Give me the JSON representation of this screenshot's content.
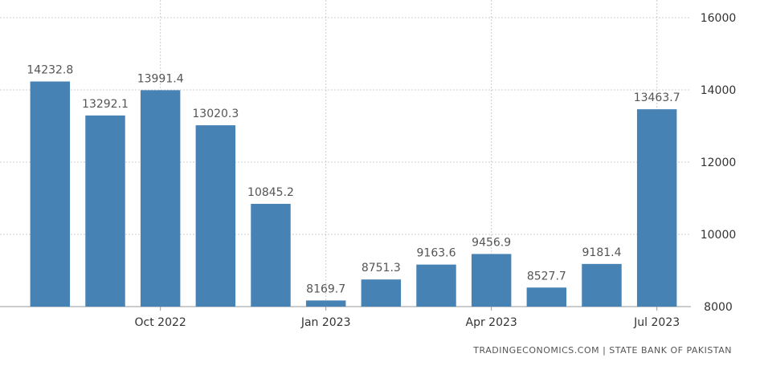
{
  "chart_data": {
    "type": "bar",
    "categories": [
      "Aug 2022",
      "Sep 2022",
      "Oct 2022",
      "Nov 2022",
      "Dec 2022",
      "Jan 2023",
      "Feb 2023",
      "Mar 2023",
      "Apr 2023",
      "May 2023",
      "Jun 2023",
      "Jul 2023"
    ],
    "values": [
      14232.8,
      13292.1,
      13991.4,
      13020.3,
      10845.2,
      8169.7,
      8751.3,
      9163.6,
      9456.9,
      8527.7,
      9181.4,
      13463.7
    ],
    "value_labels": [
      "14232.8",
      "13292.1",
      "13991.4",
      "13020.3",
      "10845.2",
      "8169.7",
      "8751.3",
      "9163.6",
      "9456.9",
      "8527.7",
      "9181.4",
      "13463.7"
    ],
    "x_tick_labels": [
      {
        "index": 2,
        "label": "Oct 2022"
      },
      {
        "index": 5,
        "label": "Jan 2023"
      },
      {
        "index": 8,
        "label": "Apr 2023"
      },
      {
        "index": 11,
        "label": "Jul 2023"
      }
    ],
    "y_ticks": [
      8000,
      10000,
      12000,
      14000,
      16000
    ],
    "ylim": [
      8000,
      16000
    ],
    "y_axis_side": "right",
    "grid": true,
    "bar_color": "#4682b4",
    "grid_color": "#cccccc"
  },
  "source_text": "TRADINGECONOMICS.COM | STATE BANK OF PAKISTAN"
}
